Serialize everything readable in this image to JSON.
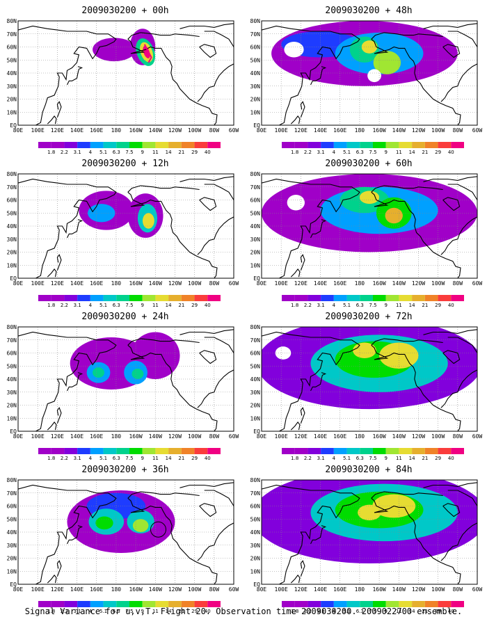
{
  "panels": [
    {
      "title": "2009030200 + 00h",
      "lead": "00h"
    },
    {
      "title": "2009030200 + 12h",
      "lead": "12h"
    },
    {
      "title": "2009030200 + 24h",
      "lead": "24h"
    },
    {
      "title": "2009030200 + 36h",
      "lead": "36h"
    },
    {
      "title": "2009030200 + 48h",
      "lead": "48h"
    },
    {
      "title": "2009030200 + 60h",
      "lead": "60h"
    },
    {
      "title": "2009030200 + 72h",
      "lead": "72h"
    },
    {
      "title": "2009030200 + 84h",
      "lead": "84h"
    }
  ],
  "lat_labels": [
    "80N",
    "70N",
    "60N",
    "50N",
    "40N",
    "30N",
    "20N",
    "10N",
    "EQ"
  ],
  "lon_labels": [
    "80E",
    "100E",
    "120E",
    "140E",
    "160E",
    "180",
    "160W",
    "140W",
    "120W",
    "100W",
    "80W",
    "60W"
  ],
  "colorbar": {
    "labels": [
      "1.8",
      "2.2",
      "3.1",
      "4",
      "5.1",
      "6.3",
      "7.5",
      "9",
      "11",
      "14",
      "21",
      "29",
      "40"
    ],
    "colors": [
      "#a000c8",
      "#8200dc",
      "#1e3cff",
      "#00a0ff",
      "#00c8c8",
      "#00d28c",
      "#00dc00",
      "#a0e632",
      "#e6dc32",
      "#e6af2d",
      "#f08228",
      "#fa3c3c",
      "#f00082"
    ]
  },
  "caption": "Signal Variance for u,v,T. Flight 20. Observation time 2009030200. 2009022700 ensemble."
}
